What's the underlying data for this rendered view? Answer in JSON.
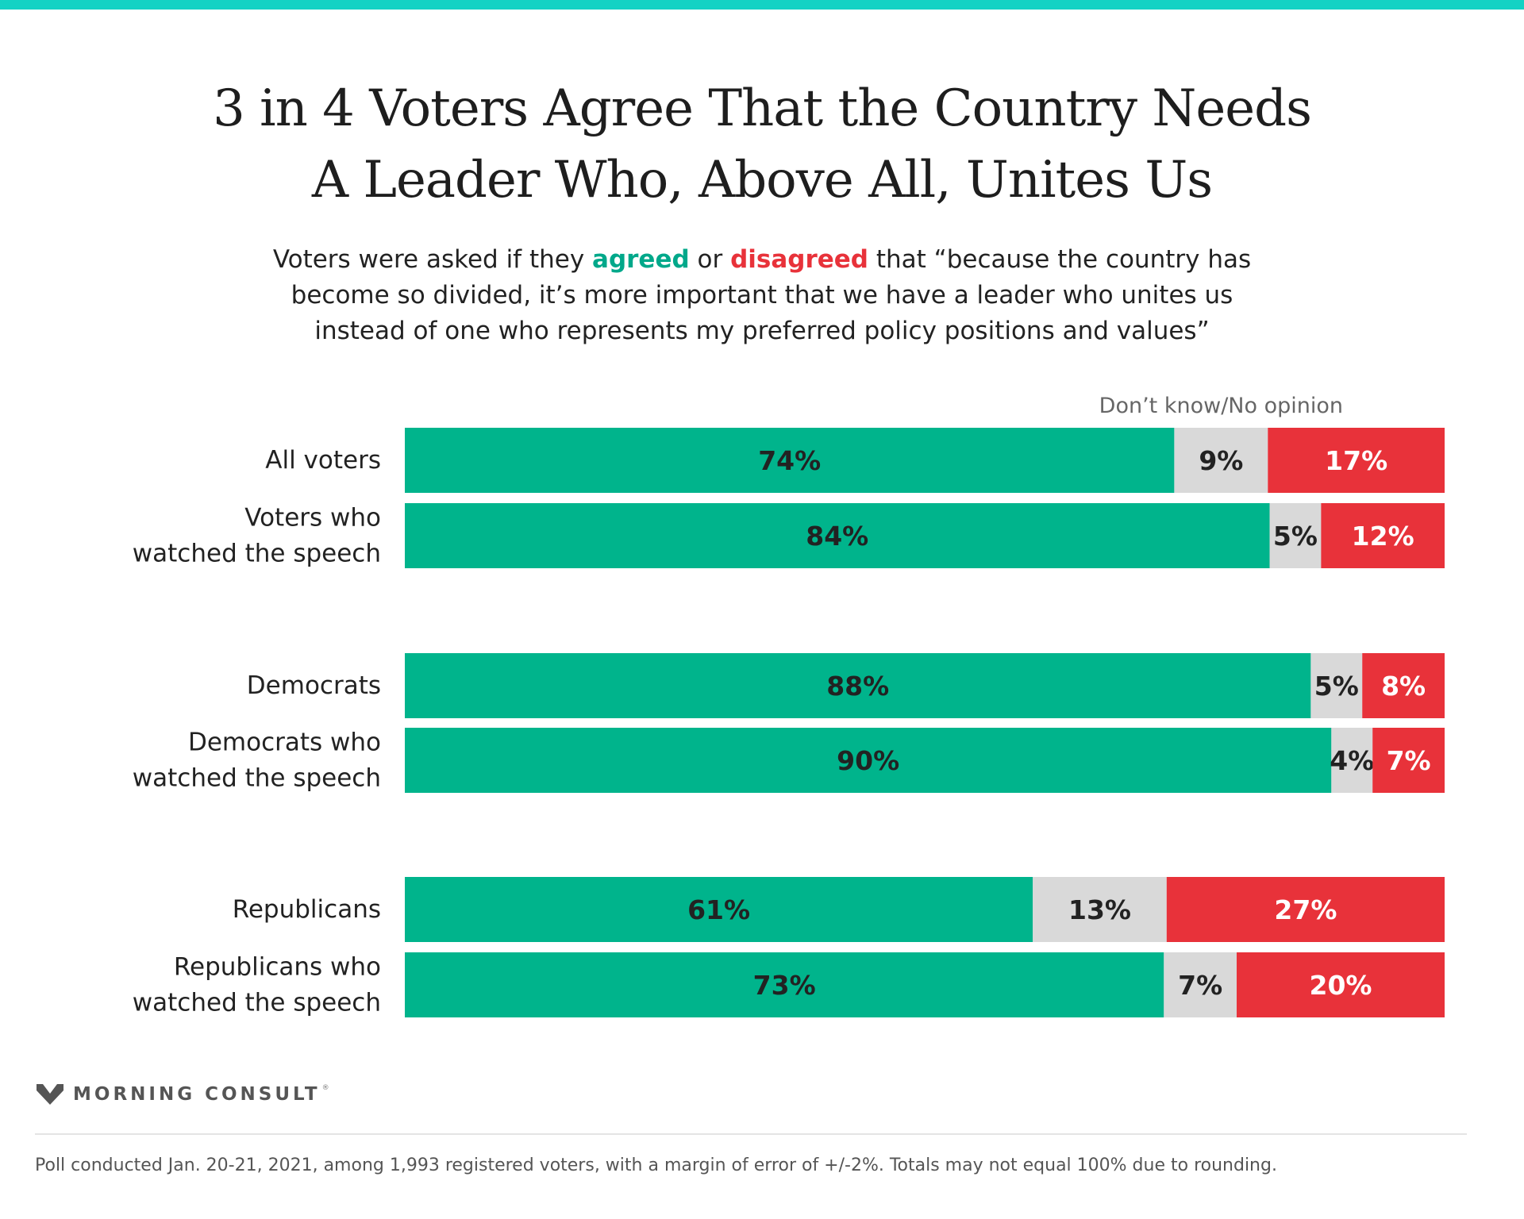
{
  "header": {
    "title_line1": "3 in 4 Voters Agree That the Country Needs",
    "title_line2": "A Leader Who, Above All, Unites Us",
    "subtitle_pre": "Voters were asked if they ",
    "subtitle_agree": "agreed",
    "subtitle_or": " or ",
    "subtitle_disagree": "disagreed",
    "subtitle_post": " that “because the country has become so divided, it’s more important that we have a leader who unites us instead of one who represents my preferred policy positions and values”"
  },
  "colors": {
    "agree": "#00b48c",
    "dont_know": "#d9d9d9",
    "disagree": "#e8323a",
    "accent": "#14d2c4"
  },
  "chart_data": {
    "type": "bar",
    "orientation": "horizontal-stacked-100",
    "dont_know_label": "Don’t know/No opinion",
    "series": [
      {
        "name": "agreed",
        "values": [
          74,
          84,
          88,
          90,
          61,
          73
        ]
      },
      {
        "name": "Don’t know/No opinion",
        "values": [
          9,
          5,
          5,
          4,
          13,
          7
        ]
      },
      {
        "name": "disagreed",
        "values": [
          17,
          12,
          8,
          7,
          27,
          20
        ]
      }
    ],
    "categories": [
      "All voters",
      "Voters who watched the speech",
      "Democrats",
      "Democrats who watched the speech",
      "Republicans",
      "Republicans who watched the speech"
    ],
    "category_lines": [
      [
        "All voters"
      ],
      [
        "Voters who",
        "watched the speech"
      ],
      [
        "Democrats"
      ],
      [
        "Democrats who",
        "watched the speech"
      ],
      [
        "Republicans"
      ],
      [
        "Republicans who",
        "watched the speech"
      ]
    ],
    "groups": [
      [
        0,
        1
      ],
      [
        2,
        3
      ],
      [
        4,
        5
      ]
    ],
    "xlim": [
      0,
      100
    ]
  },
  "brand": {
    "name": "MORNING CONSULT",
    "reg": "®"
  },
  "footnote": "Poll conducted Jan. 20-21, 2021, among 1,993 registered voters, with a margin of error of +/-2%. Totals may not equal 100% due to rounding."
}
